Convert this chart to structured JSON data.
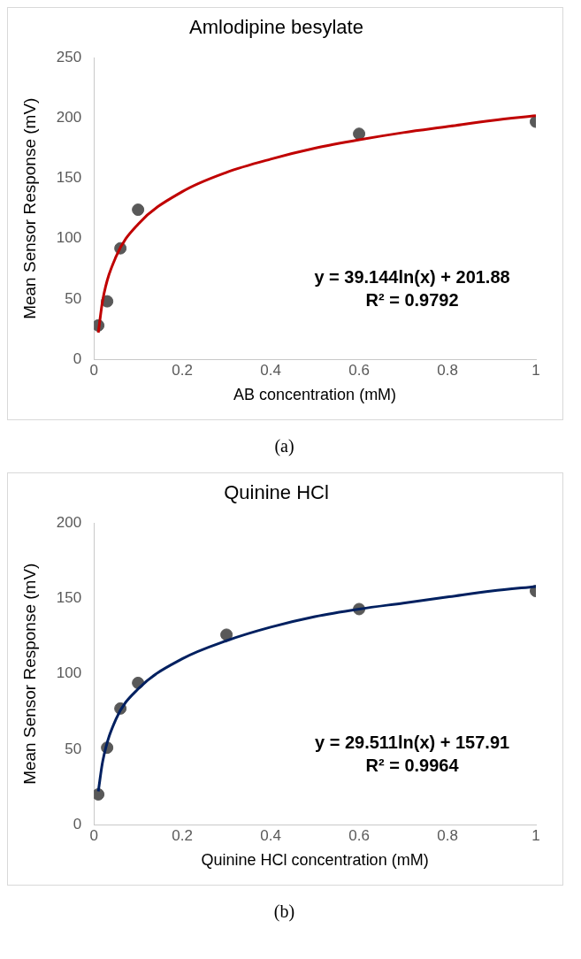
{
  "chart_data": [
    {
      "type": "scatter",
      "title": "Amlodipine besylate",
      "xlabel": "AB concentration (mM)",
      "ylabel": "Mean Sensor Response (mV)",
      "xlim": [
        0,
        1
      ],
      "xticks": [
        0,
        0.2,
        0.4,
        0.6,
        0.8,
        1
      ],
      "ylim": [
        0,
        250
      ],
      "yticks": [
        0,
        50,
        100,
        150,
        200,
        250
      ],
      "grid": false,
      "legend": false,
      "marker": "circle",
      "series": [
        {
          "type": "scatter",
          "color": "#595959",
          "x": [
            0.01,
            0.03,
            0.06,
            0.1,
            0.6,
            1
          ],
          "values": [
            28,
            48,
            92,
            124,
            187,
            197
          ]
        },
        {
          "type": "line",
          "color": "#c00000",
          "marker": "none",
          "line_style": "solid",
          "x": [
            0.01,
            0.02,
            0.05,
            0.1,
            0.2,
            0.3,
            0.4,
            0.5,
            0.6,
            0.7,
            0.8,
            0.9,
            1
          ],
          "values": [
            22,
            49,
            85,
            112,
            139,
            155,
            166,
            175,
            182,
            188,
            193,
            198,
            202
          ]
        }
      ],
      "annotations": [
        "y = 39.144ln(x) + 201.88",
        "R² = 0.9792",
        "(a)"
      ]
    },
    {
      "type": "scatter",
      "title": "Quinine HCl",
      "xlabel": "Quinine HCl concentration (mM)",
      "ylabel": "Mean Sensor Response (mV)",
      "xlim": [
        0,
        1
      ],
      "xticks": [
        0,
        0.2,
        0.4,
        0.6,
        0.8,
        1
      ],
      "ylim": [
        0,
        200
      ],
      "yticks": [
        0,
        50,
        100,
        150,
        200
      ],
      "grid": false,
      "legend": false,
      "marker": "circle",
      "series": [
        {
          "type": "scatter",
          "color": "#595959",
          "x": [
            0.01,
            0.03,
            0.06,
            0.1,
            0.3,
            0.6,
            1
          ],
          "values": [
            20,
            51,
            77,
            94,
            126,
            143,
            155
          ]
        },
        {
          "type": "line",
          "color": "#002060",
          "marker": "none",
          "line_style": "solid",
          "x": [
            0.01,
            0.02,
            0.05,
            0.1,
            0.2,
            0.3,
            0.4,
            0.5,
            0.6,
            0.7,
            0.8,
            0.9,
            1
          ],
          "values": [
            22,
            42,
            70,
            90,
            110,
            122,
            131,
            138,
            143,
            147,
            151,
            155,
            158
          ]
        }
      ],
      "annotations": [
        "y = 29.511ln(x) + 157.91",
        "R² = 0.9964",
        "(b)"
      ]
    }
  ]
}
